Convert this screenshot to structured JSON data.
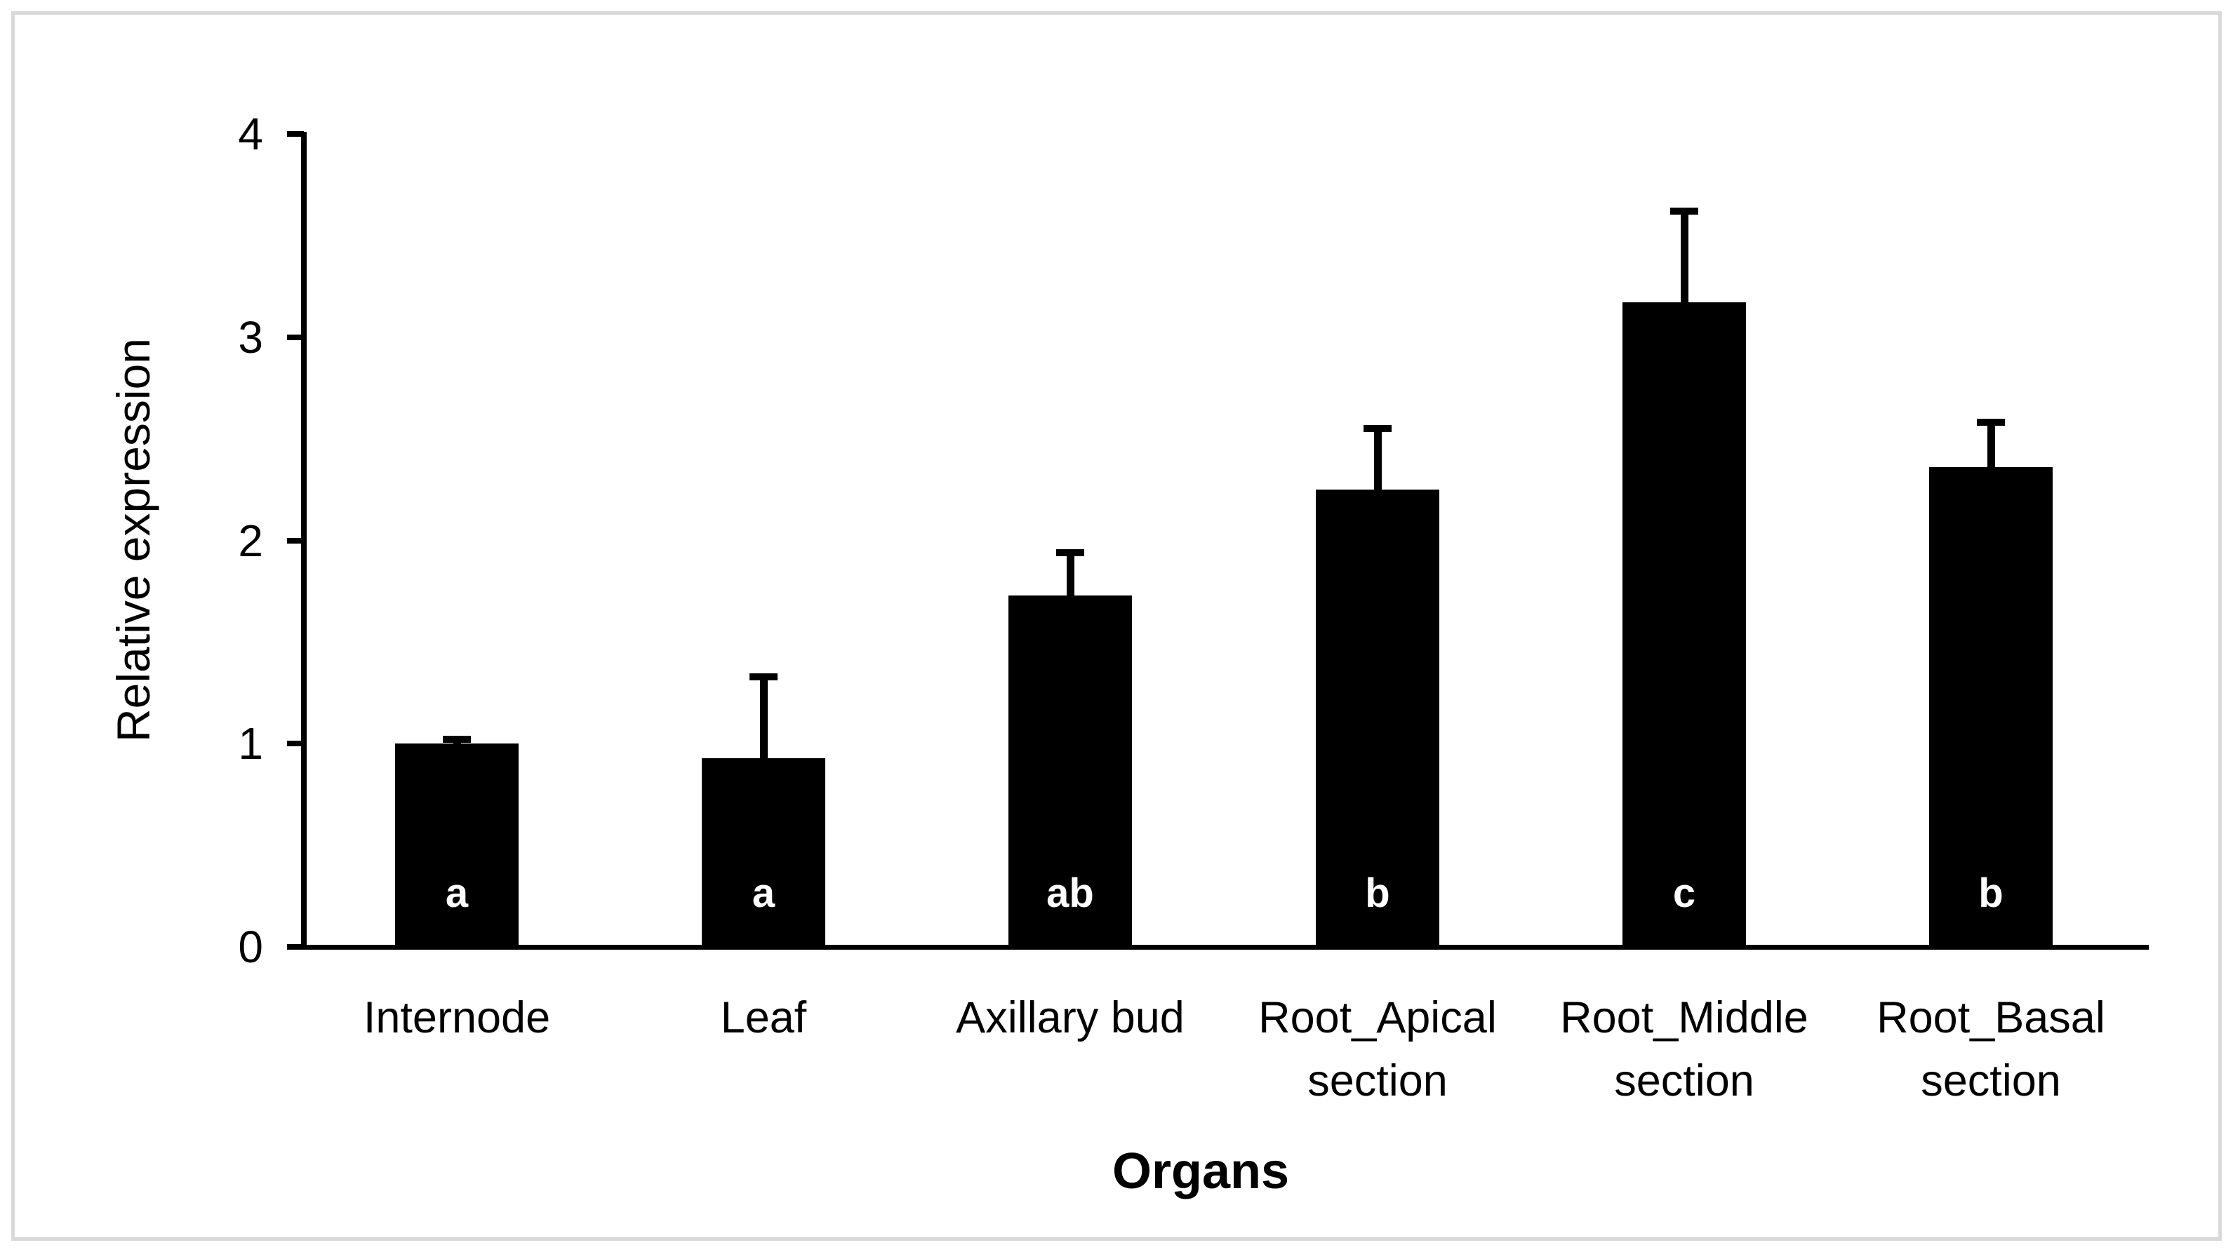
{
  "chart_data": {
    "type": "bar",
    "title": "",
    "ylabel": "Relative expression",
    "xlabel": "Organs",
    "ylim": [
      0,
      4
    ],
    "yticks": [
      0,
      1,
      2,
      3,
      4
    ],
    "grid": false,
    "legend": null,
    "bar_color": "#000000",
    "error_bar_color": "#000000",
    "letter_color": "#ffffff",
    "categories": [
      "Internode",
      "Leaf",
      "Axillary bud",
      "Root_Apical section",
      "Root_Middle section",
      "Root_Basal section"
    ],
    "values": [
      1.0,
      0.93,
      1.73,
      2.25,
      3.17,
      2.36
    ],
    "errors_plus": [
      0.02,
      0.4,
      0.21,
      0.3,
      0.45,
      0.22
    ],
    "significance_letters": [
      "a",
      "a",
      "ab",
      "b",
      "c",
      "b"
    ]
  }
}
